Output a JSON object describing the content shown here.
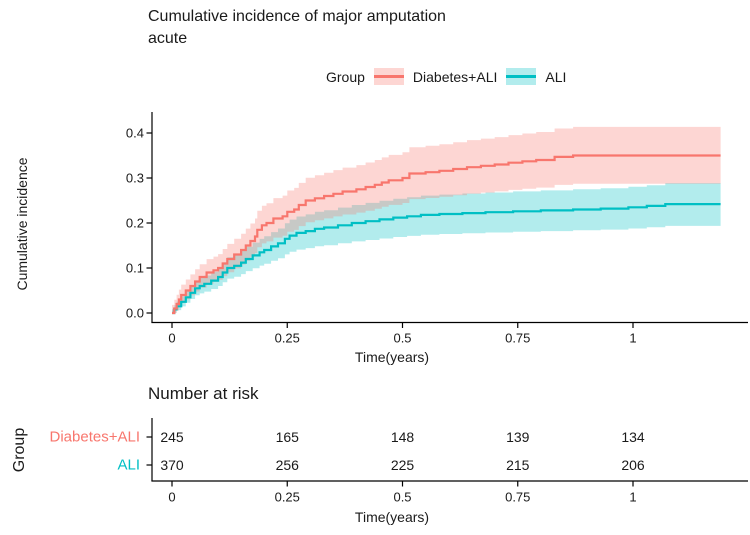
{
  "title": {
    "line1": "Cumulative incidence of major amputation",
    "line2": "acute"
  },
  "legend": {
    "label": "Group",
    "items": [
      {
        "label": "Diabetes+ALI",
        "line_color": "#F8766D",
        "fill_color": "rgba(248,118,109,0.30)"
      },
      {
        "label": "ALI",
        "line_color": "#00BFC4",
        "fill_color": "rgba(0,191,196,0.30)"
      }
    ]
  },
  "chart_data": {
    "type": "line",
    "subtype": "cumulative-incidence-step-curves-with-confidence-bands",
    "title": "Cumulative incidence of major amputation acute",
    "xlabel": "Time(years)",
    "ylabel": "Cumulative incidence",
    "xlim": [
      0,
      1.19
    ],
    "ylim": [
      0,
      0.42
    ],
    "grid": false,
    "legend_position": "top",
    "xticks": {
      "values": [
        0,
        0.25,
        0.5,
        0.75,
        1
      ],
      "labels": [
        "0",
        "0.25",
        "0.5",
        "0.75",
        "1"
      ]
    },
    "yticks": {
      "values": [
        0,
        0.1,
        0.2,
        0.3,
        0.4
      ],
      "labels": [
        "0.0",
        "0.1",
        "0.2",
        "0.3",
        "0.4"
      ]
    },
    "series": [
      {
        "name": "Diabetes+ALI",
        "color": "#F8766D",
        "band_color": "rgba(248,118,109,0.30)",
        "ci_halfwidth_model": {
          "lower": [
            0.012,
            0.145
          ],
          "upper": [
            0.018,
            0.13
          ]
        },
        "points": [
          [
            0,
            0
          ],
          [
            0.005,
            0.01
          ],
          [
            0.01,
            0.02
          ],
          [
            0.015,
            0.03
          ],
          [
            0.02,
            0.04
          ],
          [
            0.03,
            0.05
          ],
          [
            0.04,
            0.06
          ],
          [
            0.05,
            0.07
          ],
          [
            0.06,
            0.08
          ],
          [
            0.075,
            0.09
          ],
          [
            0.09,
            0.095
          ],
          [
            0.1,
            0.1
          ],
          [
            0.11,
            0.11
          ],
          [
            0.12,
            0.12
          ],
          [
            0.135,
            0.13
          ],
          [
            0.15,
            0.14
          ],
          [
            0.16,
            0.15
          ],
          [
            0.17,
            0.16
          ],
          [
            0.18,
            0.17
          ],
          [
            0.185,
            0.185
          ],
          [
            0.195,
            0.195
          ],
          [
            0.205,
            0.2
          ],
          [
            0.22,
            0.21
          ],
          [
            0.24,
            0.215
          ],
          [
            0.25,
            0.225
          ],
          [
            0.265,
            0.23
          ],
          [
            0.275,
            0.24
          ],
          [
            0.29,
            0.25
          ],
          [
            0.31,
            0.255
          ],
          [
            0.33,
            0.26
          ],
          [
            0.35,
            0.265
          ],
          [
            0.37,
            0.27
          ],
          [
            0.4,
            0.275
          ],
          [
            0.42,
            0.28
          ],
          [
            0.44,
            0.285
          ],
          [
            0.455,
            0.29
          ],
          [
            0.47,
            0.295
          ],
          [
            0.5,
            0.3
          ],
          [
            0.515,
            0.31
          ],
          [
            0.55,
            0.313
          ],
          [
            0.58,
            0.316
          ],
          [
            0.61,
            0.32
          ],
          [
            0.64,
            0.324
          ],
          [
            0.67,
            0.327
          ],
          [
            0.7,
            0.33
          ],
          [
            0.73,
            0.334
          ],
          [
            0.76,
            0.337
          ],
          [
            0.79,
            0.34
          ],
          [
            0.83,
            0.347
          ],
          [
            0.87,
            0.35
          ],
          [
            1.19,
            0.35
          ]
        ]
      },
      {
        "name": "ALI",
        "color": "#00BFC4",
        "band_color": "rgba(0,191,196,0.30)",
        "ci_halfwidth_model": {
          "lower": [
            0.006,
            0.175
          ],
          "upper": [
            0.008,
            0.16
          ]
        },
        "points": [
          [
            0,
            0
          ],
          [
            0.005,
            0.008
          ],
          [
            0.01,
            0.015
          ],
          [
            0.02,
            0.025
          ],
          [
            0.03,
            0.035
          ],
          [
            0.04,
            0.045
          ],
          [
            0.05,
            0.055
          ],
          [
            0.06,
            0.06
          ],
          [
            0.07,
            0.065
          ],
          [
            0.085,
            0.072
          ],
          [
            0.1,
            0.08
          ],
          [
            0.11,
            0.09
          ],
          [
            0.12,
            0.1
          ],
          [
            0.135,
            0.105
          ],
          [
            0.15,
            0.112
          ],
          [
            0.16,
            0.12
          ],
          [
            0.175,
            0.128
          ],
          [
            0.19,
            0.135
          ],
          [
            0.2,
            0.14
          ],
          [
            0.215,
            0.148
          ],
          [
            0.23,
            0.155
          ],
          [
            0.245,
            0.165
          ],
          [
            0.255,
            0.172
          ],
          [
            0.27,
            0.178
          ],
          [
            0.29,
            0.182
          ],
          [
            0.31,
            0.187
          ],
          [
            0.33,
            0.19
          ],
          [
            0.36,
            0.195
          ],
          [
            0.39,
            0.2
          ],
          [
            0.42,
            0.204
          ],
          [
            0.45,
            0.208
          ],
          [
            0.48,
            0.212
          ],
          [
            0.51,
            0.215
          ],
          [
            0.54,
            0.218
          ],
          [
            0.58,
            0.22
          ],
          [
            0.63,
            0.222
          ],
          [
            0.68,
            0.224
          ],
          [
            0.74,
            0.226
          ],
          [
            0.8,
            0.228
          ],
          [
            0.87,
            0.23
          ],
          [
            0.93,
            0.232
          ],
          [
            0.99,
            0.235
          ],
          [
            1.03,
            0.238
          ],
          [
            1.07,
            0.242
          ],
          [
            1.19,
            0.242
          ]
        ]
      }
    ]
  },
  "risk_table": {
    "title": "Number at risk",
    "ylabel": "Group",
    "xlabel": "Time(years)",
    "times": [
      0,
      0.25,
      0.5,
      0.75,
      1
    ],
    "time_labels": [
      "0",
      "0.25",
      "0.5",
      "0.75",
      "1"
    ],
    "rows": [
      {
        "name": "Diabetes+ALI",
        "color": "#F8766D",
        "values": [
          "245",
          "165",
          "148",
          "139",
          "134"
        ]
      },
      {
        "name": "ALI",
        "color": "#00BFC4",
        "values": [
          "370",
          "256",
          "225",
          "215",
          "206"
        ]
      }
    ]
  }
}
